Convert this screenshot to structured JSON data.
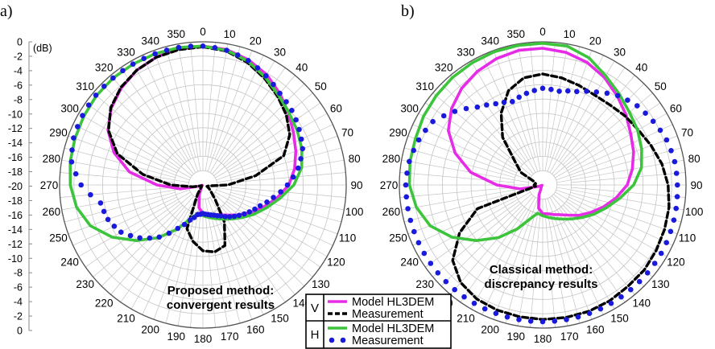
{
  "colors": {
    "model_v": "#e62ce6",
    "measure_v": "#000000",
    "model_h": "#3cc43c",
    "measure_h": "#1a1add",
    "grid": "#c4c4c4"
  },
  "legend": {
    "rows": [
      {
        "key": "V",
        "items": [
          {
            "label": "Model HL3DEM",
            "style": "solid-magenta"
          },
          {
            "label": "Measurement",
            "style": "dashed-black"
          }
        ]
      },
      {
        "key": "H",
        "items": [
          {
            "label": "Model HL3DEM",
            "style": "solid-green"
          },
          {
            "label": "Measurement",
            "style": "dots-blue"
          }
        ]
      }
    ]
  },
  "chart_data": [
    {
      "type": "polar-line",
      "panel_label": "a)",
      "annotation": [
        "Proposed method:",
        "convergent results"
      ],
      "unit_label": "(dB)",
      "angle_ticks": [
        0,
        10,
        20,
        30,
        40,
        50,
        60,
        70,
        80,
        90,
        100,
        110,
        120,
        130,
        140,
        150,
        160,
        170,
        180,
        190,
        200,
        210,
        220,
        230,
        240,
        250,
        260,
        270,
        280,
        290,
        300,
        310,
        320,
        330,
        340,
        350
      ],
      "radial_ticks": [
        "0",
        "-2",
        "-4",
        "-6",
        "-8",
        "-10",
        "-12",
        "-14",
        "-16",
        "-18",
        "-20",
        "-18",
        "-16",
        "-14",
        "-12",
        "-10",
        "-8",
        "-6",
        "-4",
        "-2",
        "0"
      ],
      "rlim": [
        -20,
        0
      ],
      "angles": [
        0,
        10,
        20,
        30,
        40,
        50,
        60,
        70,
        80,
        90,
        100,
        110,
        120,
        130,
        140,
        150,
        160,
        170,
        180,
        190,
        200,
        210,
        220,
        230,
        240,
        250,
        260,
        270,
        280,
        290,
        300,
        310,
        320,
        330,
        340,
        350,
        360
      ],
      "series": [
        {
          "name": "V Model HL3DEM",
          "style": "solid-magenta",
          "values": [
            -0.6,
            -0.8,
            -1.4,
            -2.2,
            -3.3,
            -4.4,
            -5.4,
            -6.2,
            -7.0,
            -8.0,
            -9.5,
            -11.0,
            -12.3,
            -13.5,
            -14.5,
            -15.2,
            -15.6,
            -15.8,
            -16.0,
            -16.8,
            -18.5,
            -19.6,
            -19.6,
            -19.7,
            -19.9,
            -19.5,
            -16.8,
            -13.6,
            -9.6,
            -6.8,
            -4.7,
            -3.3,
            -2.3,
            -1.5,
            -1.0,
            -0.7,
            -0.6
          ]
        },
        {
          "name": "V Measurement",
          "style": "dashed-black",
          "values": [
            -0.7,
            -1.0,
            -1.8,
            -2.8,
            -3.8,
            -4.8,
            -6.0,
            -8.0,
            -12.5,
            -16.5,
            -19.2,
            -19.4,
            -19.0,
            -18.5,
            -17.3,
            -14.0,
            -11.0,
            -10.5,
            -10.8,
            -12.0,
            -13.5,
            -18.5,
            -19.7,
            -19.8,
            -19.8,
            -19.6,
            -18.5,
            -15.5,
            -11.5,
            -7.3,
            -4.8,
            -3.2,
            -2.2,
            -1.5,
            -1.0,
            -0.8,
            -0.7
          ]
        },
        {
          "name": "H Model HL3DEM",
          "style": "solid-green",
          "values": [
            -0.6,
            -0.9,
            -1.6,
            -2.6,
            -3.6,
            -4.3,
            -4.8,
            -5.3,
            -6.0,
            -7.3,
            -9.1,
            -10.6,
            -11.8,
            -12.9,
            -13.8,
            -14.5,
            -15.0,
            -15.4,
            -15.7,
            -16.0,
            -15.0,
            -12.9,
            -10.4,
            -7.9,
            -5.4,
            -3.3,
            -2.1,
            -1.5,
            -1.2,
            -1.0,
            -0.8,
            -0.6,
            -0.5,
            -0.5,
            -0.5,
            -0.5,
            -0.6
          ]
        },
        {
          "name": "H Measurement",
          "style": "dots-blue",
          "values": [
            -0.6,
            -0.9,
            -1.5,
            -2.4,
            -3.3,
            -3.8,
            -4.5,
            -5.2,
            -6.5,
            -8.2,
            -10.0,
            -11.5,
            -12.5,
            -13.4,
            -14.2,
            -15.0,
            -15.5,
            -15.8,
            -16.0,
            -15.8,
            -14.8,
            -13.0,
            -10.5,
            -8.5,
            -6.8,
            -5.9,
            -5.5,
            -3.0,
            -1.4,
            -0.8,
            -0.6,
            -0.5,
            -0.5,
            -0.5,
            -0.5,
            -0.5,
            -0.6
          ]
        }
      ]
    },
    {
      "type": "polar-line",
      "panel_label": "b)",
      "annotation": [
        "Classical method:",
        "discrepancy results"
      ],
      "angle_ticks": [
        0,
        10,
        20,
        30,
        40,
        50,
        60,
        70,
        80,
        90,
        100,
        110,
        120,
        130,
        140,
        150,
        160,
        170,
        180,
        190,
        200,
        210,
        220,
        230,
        240,
        250,
        260,
        270,
        280,
        290,
        300,
        310,
        320,
        330,
        340,
        350
      ],
      "rlim": [
        -20,
        0
      ],
      "angles": [
        0,
        10,
        20,
        30,
        40,
        50,
        60,
        70,
        80,
        90,
        100,
        110,
        120,
        130,
        140,
        150,
        160,
        170,
        180,
        190,
        200,
        210,
        220,
        230,
        240,
        250,
        260,
        270,
        280,
        290,
        300,
        310,
        320,
        330,
        340,
        350,
        360
      ],
      "series": [
        {
          "name": "V Model HL3DEM",
          "style": "solid-magenta",
          "values": [
            -0.9,
            -1.2,
            -1.8,
            -2.7,
            -3.8,
            -4.8,
            -5.8,
            -6.5,
            -7.3,
            -8.2,
            -9.6,
            -11.0,
            -12.3,
            -13.4,
            -14.5,
            -15.2,
            -15.6,
            -15.9,
            -16.0,
            -16.7,
            -18.5,
            -19.6,
            -19.7,
            -19.8,
            -19.9,
            -19.4,
            -16.8,
            -13.6,
            -9.8,
            -7.0,
            -4.8,
            -3.4,
            -2.4,
            -1.7,
            -1.2,
            -0.9,
            -0.9
          ]
        },
        {
          "name": "V Measurement",
          "style": "dashed-black",
          "values": [
            -4.5,
            -4.8,
            -5.2,
            -5.5,
            -5.4,
            -5.0,
            -4.6,
            -3.9,
            -3.1,
            -2.5,
            -2.1,
            -1.9,
            -1.7,
            -1.5,
            -1.5,
            -1.3,
            -1.2,
            -1.2,
            -1.2,
            -1.3,
            -1.4,
            -1.6,
            -2.2,
            -3.6,
            -6.6,
            -10.3,
            -19.0,
            -18.8,
            -19.0,
            -18.8,
            -16.5,
            -15.0,
            -11.3,
            -8.4,
            -6.0,
            -4.8,
            -4.5
          ]
        },
        {
          "name": "H Model HL3DEM",
          "style": "solid-green",
          "values": [
            -0.2,
            -0.3,
            -1.1,
            -2.4,
            -3.4,
            -4.2,
            -4.7,
            -5.3,
            -6.0,
            -7.3,
            -9.1,
            -10.6,
            -11.8,
            -12.9,
            -13.8,
            -14.5,
            -15.0,
            -15.4,
            -15.7,
            -16.0,
            -15.0,
            -12.9,
            -10.4,
            -7.9,
            -5.4,
            -3.3,
            -2.1,
            -1.4,
            -1.2,
            -1.1,
            -0.8,
            -0.6,
            -0.4,
            -0.3,
            -0.2,
            -0.2,
            -0.2
          ]
        },
        {
          "name": "H Measurement",
          "style": "dots-blue",
          "values": [
            -6.5,
            -6.7,
            -6.1,
            -5.0,
            -3.7,
            -2.8,
            -2.2,
            -1.6,
            -1.3,
            -1.2,
            -1.1,
            -1.0,
            -0.9,
            -0.9,
            -0.9,
            -0.9,
            -0.9,
            -0.9,
            -0.9,
            -0.9,
            -0.9,
            -0.9,
            -0.9,
            -0.9,
            -0.9,
            -0.9,
            -0.9,
            -0.9,
            -1.1,
            -1.6,
            -2.3,
            -4.0,
            -5.8,
            -6.9,
            -7.6,
            -7.0,
            -6.5
          ]
        }
      ]
    }
  ]
}
